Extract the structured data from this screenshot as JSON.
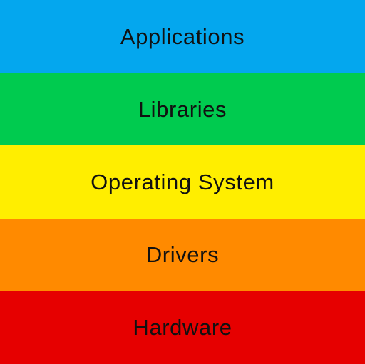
{
  "diagram": {
    "layers": [
      {
        "label": "Applications",
        "color": "#04A7EE"
      },
      {
        "label": "Libraries",
        "color": "#00CB4F"
      },
      {
        "label": "Operating System",
        "color": "#FFEE00"
      },
      {
        "label": "Drivers",
        "color": "#FF8A00"
      },
      {
        "label": "Hardware",
        "color": "#E60000"
      }
    ]
  }
}
